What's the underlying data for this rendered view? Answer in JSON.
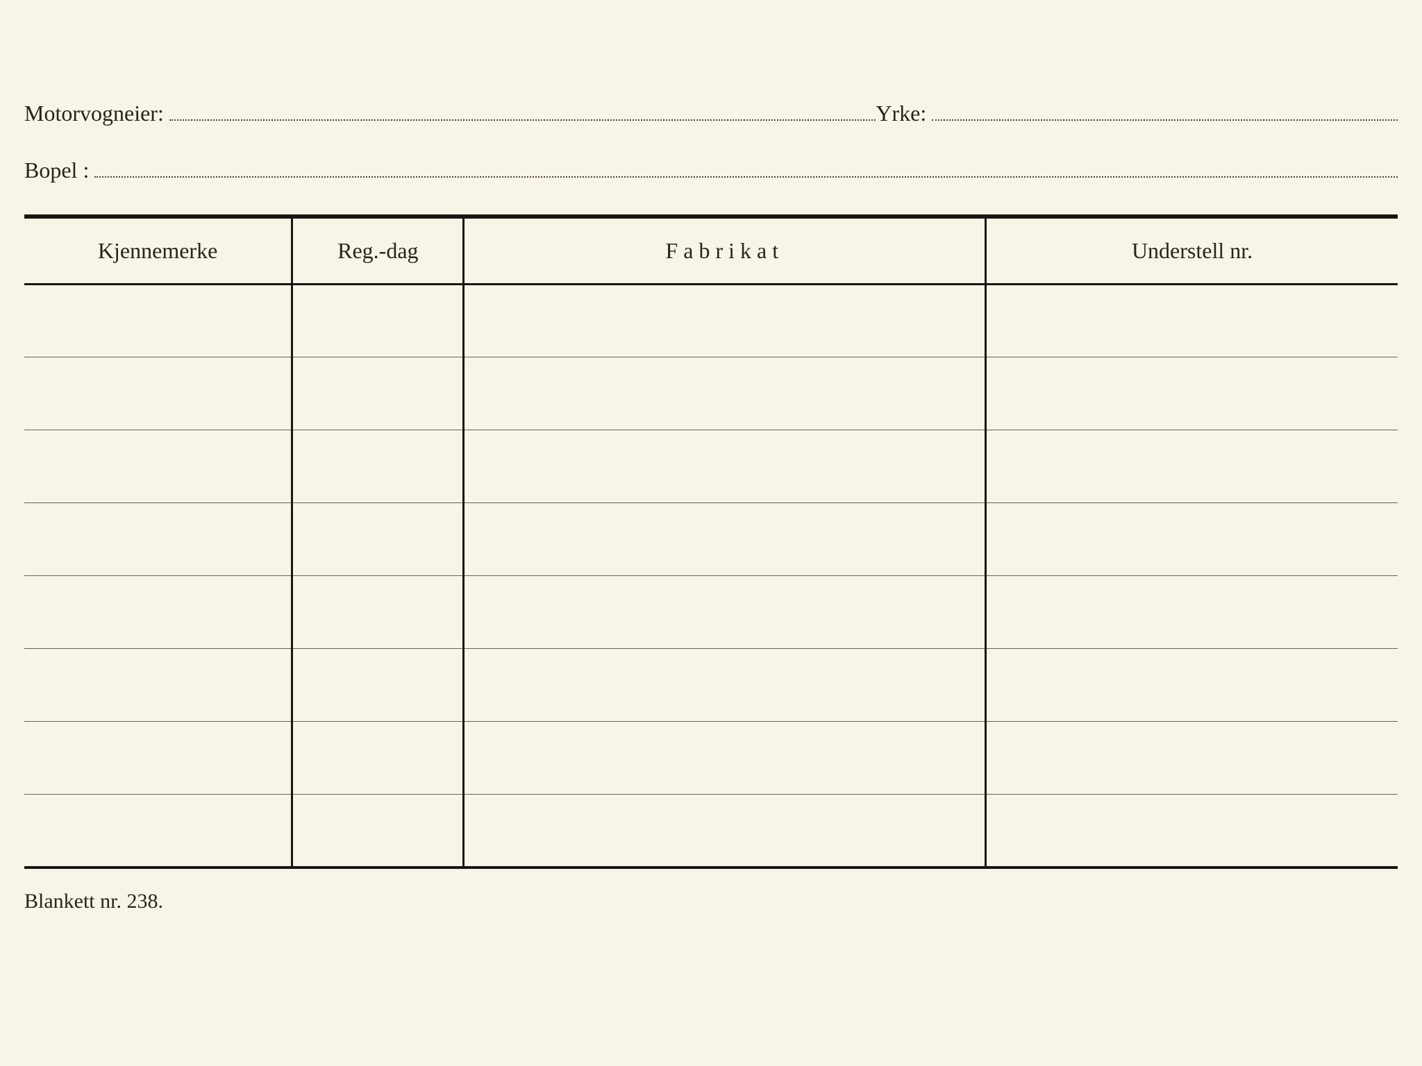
{
  "fields": {
    "motorvogneier": {
      "label": "Motorvogneier:",
      "value": ""
    },
    "yrke": {
      "label": "Yrke:",
      "value": ""
    },
    "bopel": {
      "label": "Bopel :",
      "value": ""
    }
  },
  "table": {
    "columns": [
      "Kjennemerke",
      "Reg.-dag",
      "Fabrikat",
      "Understell nr."
    ],
    "column_widths_pct": [
      19.5,
      12.5,
      38,
      30
    ],
    "rows": [
      [
        "",
        "",
        "",
        ""
      ],
      [
        "",
        "",
        "",
        ""
      ],
      [
        "",
        "",
        "",
        ""
      ],
      [
        "",
        "",
        "",
        ""
      ],
      [
        "",
        "",
        "",
        ""
      ],
      [
        "",
        "",
        "",
        ""
      ],
      [
        "",
        "",
        "",
        ""
      ],
      [
        "",
        "",
        "",
        ""
      ]
    ]
  },
  "footer": "Blankett nr. 238.",
  "colors": {
    "background": "#f8f5e8",
    "text": "#2a2418",
    "heavy_border": "#1a1510",
    "light_border": "#6a6050",
    "dotted": "#4a4030"
  },
  "typography": {
    "font_family": "Times New Roman",
    "label_fontsize_pt": 24,
    "header_fontsize_pt": 24,
    "footer_fontsize_pt": 22
  }
}
